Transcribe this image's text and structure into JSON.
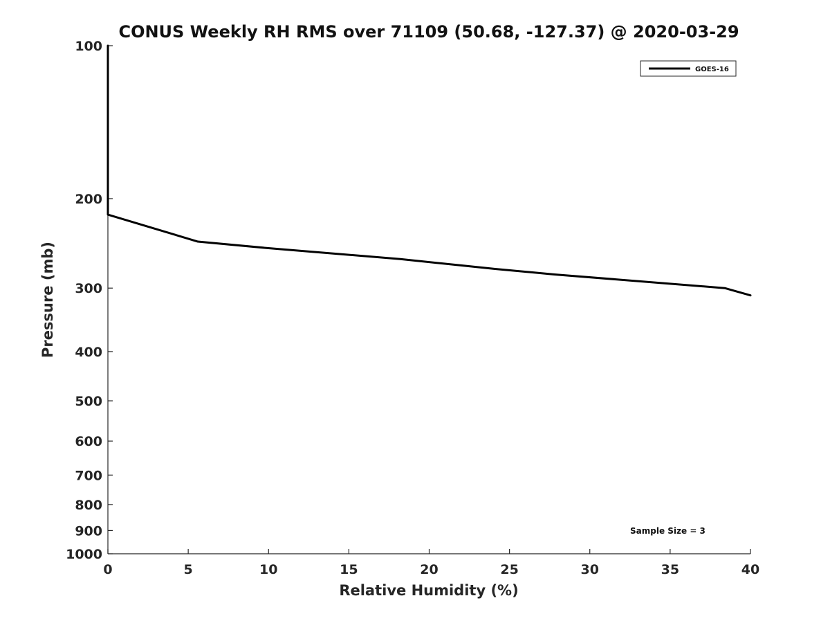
{
  "chart_data": {
    "type": "line",
    "title": "CONUS Weekly RH RMS over 71109 (50.68, -127.37) @ 2020-03-29",
    "xlabel": "Relative Humidity (%)",
    "ylabel": "Pressure (mb)",
    "xlim": [
      0,
      40
    ],
    "ylim": [
      100,
      1000
    ],
    "y_scale": "log",
    "y_reversed": true,
    "xticks": [
      "0",
      "5",
      "10",
      "15",
      "20",
      "25",
      "30",
      "35",
      "40"
    ],
    "yticks": [
      "100",
      "200",
      "300",
      "400",
      "500",
      "600",
      "700",
      "800",
      "900",
      "1000"
    ],
    "grid": false,
    "legend_position": "top-right",
    "series": [
      {
        "name": "GOES-16",
        "color": "#000000",
        "x": [
          0.0,
          0.0,
          0.0,
          5.6,
          9.8,
          18.2,
          24.1,
          27.8,
          38.4,
          40.0
        ],
        "y": [
          100,
          175,
          215,
          243,
          250,
          263,
          275,
          282,
          300,
          310
        ]
      }
    ],
    "annotation": "Sample Size = 3"
  }
}
